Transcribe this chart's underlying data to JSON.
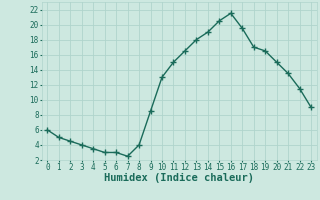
{
  "x": [
    0,
    1,
    2,
    3,
    4,
    5,
    6,
    7,
    8,
    9,
    10,
    11,
    12,
    13,
    14,
    15,
    16,
    17,
    18,
    19,
    20,
    21,
    22,
    23
  ],
  "y": [
    6,
    5,
    4.5,
    4,
    3.5,
    3,
    3,
    2.5,
    4,
    8.5,
    13,
    15,
    16.5,
    18,
    19,
    20.5,
    21.5,
    19.5,
    17,
    16.5,
    15,
    13.5,
    11.5,
    9
  ],
  "line_color": "#1a6b5a",
  "marker": "+",
  "bg_color": "#cde8e0",
  "grid_color": "#b0d4cc",
  "xlabel": "Humidex (Indice chaleur)",
  "ylim": [
    2,
    23
  ],
  "xlim": [
    -0.5,
    23.5
  ],
  "yticks": [
    2,
    4,
    6,
    8,
    10,
    12,
    14,
    16,
    18,
    20,
    22
  ],
  "xticks": [
    0,
    1,
    2,
    3,
    4,
    5,
    6,
    7,
    8,
    9,
    10,
    11,
    12,
    13,
    14,
    15,
    16,
    17,
    18,
    19,
    20,
    21,
    22,
    23
  ],
  "xlabel_color": "#1a6b5a",
  "tick_color": "#1a6b5a",
  "axis_color": "#b0d4cc",
  "linewidth": 1.0,
  "markersize": 4,
  "tick_fontsize": 5.5,
  "xlabel_fontsize": 7.5
}
